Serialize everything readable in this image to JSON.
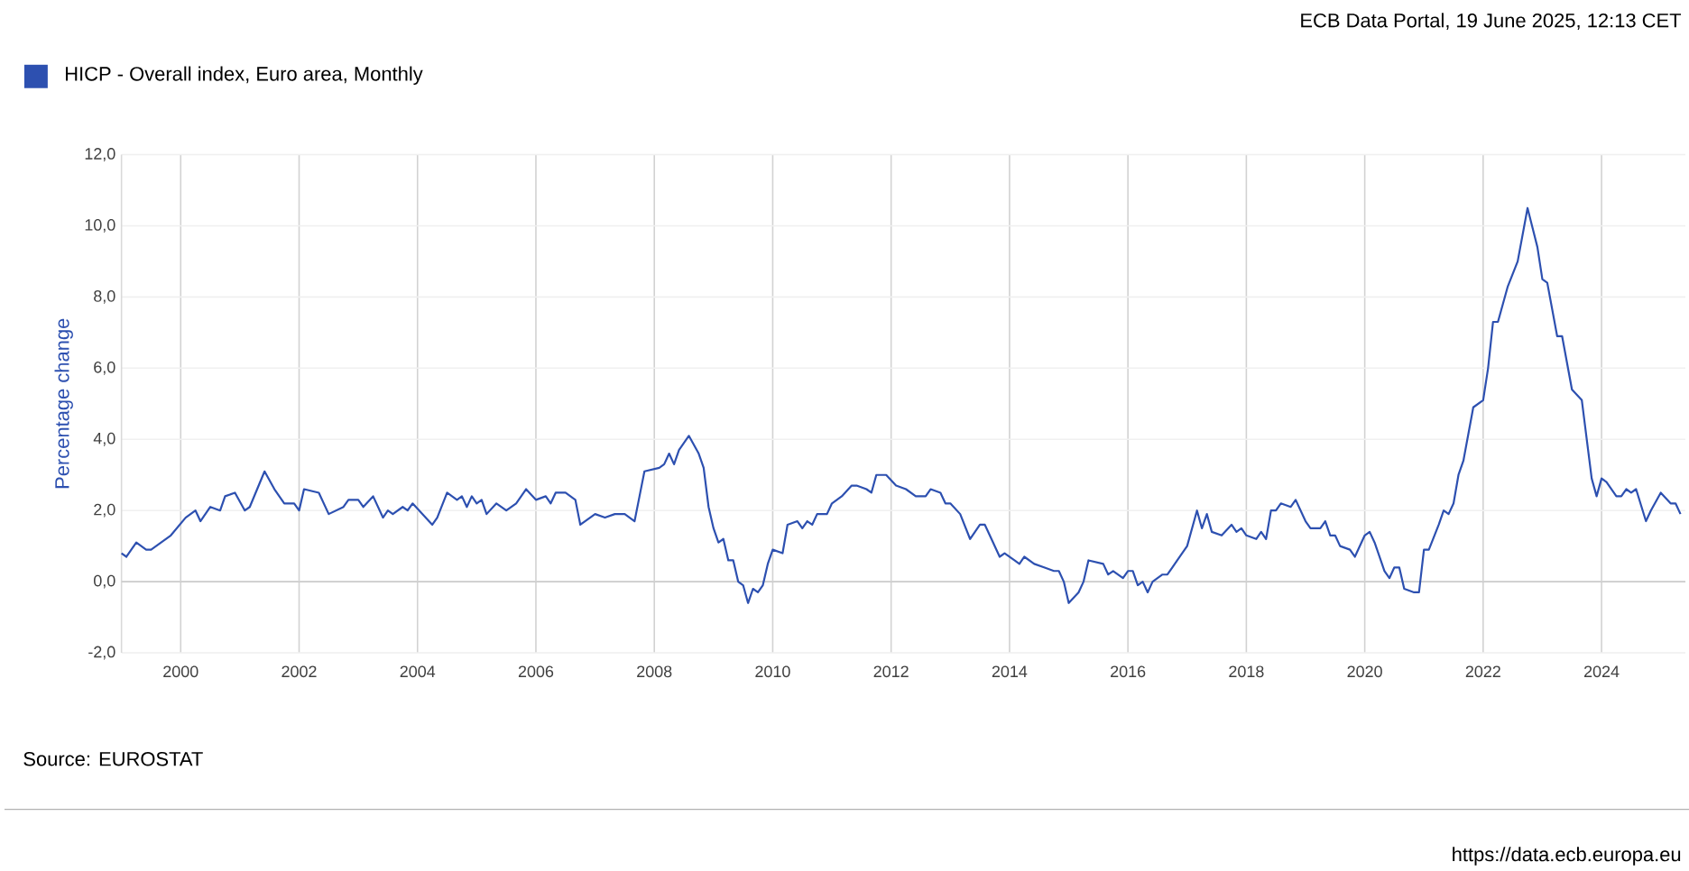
{
  "chart_data": {
    "type": "line",
    "ylabel": "Percentage change",
    "annotations": [
      "ECB Data Portal, 19 June 2025, 12:13 CET",
      "Source: EUROSTAT",
      "https://data.ecb.europa.eu"
    ],
    "x": [
      "1999-01",
      "1999-02",
      "1999-04",
      "1999-06",
      "1999-07",
      "1999-11",
      "2000-02",
      "2000-03",
      "2000-04",
      "2000-05",
      "2000-07",
      "2000-09",
      "2000-10",
      "2000-12",
      "2001-02",
      "2001-03",
      "2001-06",
      "2001-08",
      "2001-10",
      "2001-12",
      "2002-01",
      "2002-02",
      "2002-05",
      "2002-07",
      "2002-10",
      "2002-11",
      "2003-01",
      "2003-02",
      "2003-04",
      "2003-06",
      "2003-07",
      "2003-08",
      "2003-10",
      "2003-11",
      "2003-12",
      "2004-04",
      "2004-05",
      "2004-07",
      "2004-09",
      "2004-10",
      "2004-11",
      "2004-12",
      "2005-01",
      "2005-02",
      "2005-03",
      "2005-05",
      "2005-07",
      "2005-09",
      "2005-11",
      "2006-01",
      "2006-03",
      "2006-04",
      "2006-05",
      "2006-07",
      "2006-09",
      "2006-10",
      "2007-01",
      "2007-03",
      "2007-05",
      "2007-07",
      "2007-09",
      "2007-10",
      "2007-11",
      "2008-02",
      "2008-03",
      "2008-04",
      "2008-05",
      "2008-06",
      "2008-08",
      "2008-10",
      "2008-11",
      "2008-12",
      "2009-01",
      "2009-02",
      "2009-03",
      "2009-04",
      "2009-05",
      "2009-06",
      "2009-07",
      "2009-08",
      "2009-09",
      "2009-10",
      "2009-11",
      "2009-12",
      "2010-01",
      "2010-03",
      "2010-04",
      "2010-06",
      "2010-07",
      "2010-08",
      "2010-09",
      "2010-10",
      "2010-12",
      "2011-01",
      "2011-03",
      "2011-05",
      "2011-06",
      "2011-08",
      "2011-09",
      "2011-10",
      "2011-12",
      "2012-02",
      "2012-04",
      "2012-06",
      "2012-08",
      "2012-09",
      "2012-11",
      "2012-12",
      "2013-01",
      "2013-03",
      "2013-05",
      "2013-07",
      "2013-08",
      "2013-09",
      "2013-11",
      "2013-12",
      "2014-01",
      "2014-02",
      "2014-03",
      "2014-04",
      "2014-06",
      "2014-08",
      "2014-10",
      "2014-11",
      "2014-12",
      "2015-01",
      "2015-03",
      "2015-04",
      "2015-05",
      "2015-08",
      "2015-09",
      "2015-10",
      "2015-12",
      "2016-01",
      "2016-02",
      "2016-03",
      "2016-04",
      "2016-05",
      "2016-06",
      "2016-08",
      "2016-09",
      "2016-10",
      "2016-11",
      "2017-01",
      "2017-03",
      "2017-04",
      "2017-05",
      "2017-06",
      "2017-08",
      "2017-10",
      "2017-11",
      "2017-12",
      "2018-01",
      "2018-03",
      "2018-04",
      "2018-05",
      "2018-06",
      "2018-07",
      "2018-08",
      "2018-10",
      "2018-11",
      "2019-01",
      "2019-02",
      "2019-04",
      "2019-05",
      "2019-06",
      "2019-07",
      "2019-08",
      "2019-10",
      "2019-11",
      "2020-01",
      "2020-02",
      "2020-03",
      "2020-05",
      "2020-06",
      "2020-07",
      "2020-08",
      "2020-09",
      "2020-11",
      "2020-12",
      "2021-01",
      "2021-02",
      "2021-04",
      "2021-05",
      "2021-06",
      "2021-07",
      "2021-08",
      "2021-09",
      "2021-11",
      "2022-01",
      "2022-02",
      "2022-03",
      "2022-04",
      "2022-06",
      "2022-08",
      "2022-10",
      "2022-12",
      "2023-01",
      "2023-02",
      "2023-04",
      "2023-05",
      "2023-07",
      "2023-09",
      "2023-11",
      "2023-12",
      "2024-01",
      "2024-02",
      "2024-04",
      "2024-05",
      "2024-06",
      "2024-07",
      "2024-08",
      "2024-10",
      "2024-11",
      "2025-01",
      "2025-03",
      "2025-04",
      "2025-05"
    ],
    "series": [
      {
        "name": "HICP - Overall index, Euro area, Monthly",
        "color": "#2d50b0",
        "values": [
          0.8,
          0.7,
          1.1,
          0.9,
          0.9,
          1.3,
          1.8,
          1.9,
          2.0,
          1.7,
          2.1,
          2.0,
          2.4,
          2.5,
          2.0,
          2.1,
          3.1,
          2.6,
          2.2,
          2.2,
          2.0,
          2.6,
          2.5,
          1.9,
          2.1,
          2.3,
          2.3,
          2.1,
          2.4,
          1.8,
          2.0,
          1.9,
          2.1,
          2.0,
          2.2,
          1.6,
          1.8,
          2.5,
          2.3,
          2.4,
          2.1,
          2.4,
          2.2,
          2.3,
          1.9,
          2.2,
          2.0,
          2.2,
          2.6,
          2.3,
          2.4,
          2.2,
          2.5,
          2.5,
          2.3,
          1.6,
          1.9,
          1.8,
          1.9,
          1.9,
          1.7,
          2.4,
          3.1,
          3.2,
          3.3,
          3.6,
          3.3,
          3.7,
          4.1,
          3.6,
          3.2,
          2.1,
          1.5,
          1.1,
          1.2,
          0.6,
          0.6,
          0.0,
          -0.1,
          -0.6,
          -0.2,
          -0.3,
          -0.1,
          0.5,
          0.9,
          0.8,
          1.6,
          1.7,
          1.5,
          1.7,
          1.6,
          1.9,
          1.9,
          2.2,
          2.4,
          2.7,
          2.7,
          2.6,
          2.5,
          3.0,
          3.0,
          2.7,
          2.6,
          2.4,
          2.4,
          2.6,
          2.5,
          2.2,
          2.2,
          1.9,
          1.2,
          1.6,
          1.6,
          1.3,
          0.7,
          0.8,
          0.7,
          0.6,
          0.5,
          0.7,
          0.5,
          0.4,
          0.3,
          0.3,
          0.0,
          -0.6,
          -0.3,
          0.0,
          0.6,
          0.5,
          0.2,
          0.3,
          0.1,
          0.3,
          0.3,
          -0.1,
          0.0,
          -0.3,
          0.0,
          0.2,
          0.2,
          0.4,
          0.6,
          1.0,
          2.0,
          1.5,
          1.9,
          1.4,
          1.3,
          1.6,
          1.4,
          1.5,
          1.3,
          1.2,
          1.4,
          1.2,
          2.0,
          2.0,
          2.2,
          2.1,
          2.3,
          1.7,
          1.5,
          1.5,
          1.7,
          1.3,
          1.3,
          1.0,
          0.9,
          0.7,
          1.3,
          1.4,
          1.1,
          0.3,
          0.1,
          0.4,
          0.4,
          -0.2,
          -0.3,
          -0.3,
          0.9,
          0.9,
          1.6,
          2.0,
          1.9,
          2.2,
          3.0,
          3.4,
          4.9,
          5.1,
          6.0,
          7.3,
          7.3,
          8.3,
          9.0,
          10.5,
          9.4,
          8.5,
          8.4,
          6.9,
          6.9,
          5.4,
          5.1,
          2.9,
          2.4,
          2.9,
          2.8,
          2.4,
          2.4,
          2.6,
          2.5,
          2.6,
          1.7,
          2.0,
          2.5,
          2.2,
          2.2,
          1.9
        ]
      }
    ],
    "xlim": [
      "1999-01",
      "2025-06"
    ],
    "xticks": [
      "2000",
      "2002",
      "2004",
      "2006",
      "2008",
      "2010",
      "2012",
      "2014",
      "2016",
      "2018",
      "2020",
      "2022",
      "2024"
    ],
    "ylim": [
      -2,
      12
    ],
    "yticks": [
      {
        "value": -2,
        "label": "-2,0"
      },
      {
        "value": 0,
        "label": "0,0"
      },
      {
        "value": 2,
        "label": "2,0"
      },
      {
        "value": 4,
        "label": "4,0"
      },
      {
        "value": 6,
        "label": "6,0"
      },
      {
        "value": 8,
        "label": "8,0"
      },
      {
        "value": 10,
        "label": "10,0"
      },
      {
        "value": 12,
        "label": "12,0"
      }
    ],
    "grid": true,
    "legend": "top left",
    "marker": "none",
    "line_style": "solid"
  }
}
